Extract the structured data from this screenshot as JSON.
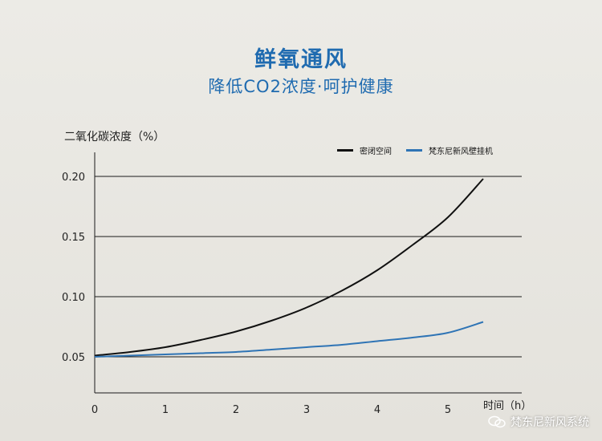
{
  "header": {
    "title": "鲜氧通风",
    "subtitle": "降低CO2浓度·呵护健康"
  },
  "watermark": {
    "text": "梵东尼新风系统",
    "icon": "wechat-icon"
  },
  "chart_data": {
    "type": "line",
    "ylabel": "二氧化碳浓度（%）",
    "xlabel": "时间（h）",
    "xlim": [
      0,
      6
    ],
    "ylim": [
      0.02,
      0.22
    ],
    "x_ticks": [
      "0",
      "1",
      "2",
      "3",
      "4",
      "5"
    ],
    "y_ticks": [
      "0.05",
      "0.10",
      "0.15",
      "0.20"
    ],
    "grid": "horizontal",
    "legend_position": "top-right",
    "series": [
      {
        "name": "密闭空间",
        "color": "#111111",
        "x": [
          0,
          0.5,
          1,
          1.5,
          2,
          2.5,
          3,
          3.5,
          4,
          4.5,
          5,
          5.5
        ],
        "y": [
          0.051,
          0.054,
          0.058,
          0.064,
          0.071,
          0.08,
          0.091,
          0.105,
          0.122,
          0.143,
          0.166,
          0.198
        ]
      },
      {
        "name": "梵东尼新风壁挂机",
        "color": "#2f74b5",
        "x": [
          0,
          0.5,
          1,
          1.5,
          2,
          2.5,
          3,
          3.5,
          4,
          4.5,
          5,
          5.5
        ],
        "y": [
          0.05,
          0.051,
          0.052,
          0.053,
          0.054,
          0.056,
          0.058,
          0.06,
          0.063,
          0.066,
          0.07,
          0.079
        ]
      }
    ]
  }
}
